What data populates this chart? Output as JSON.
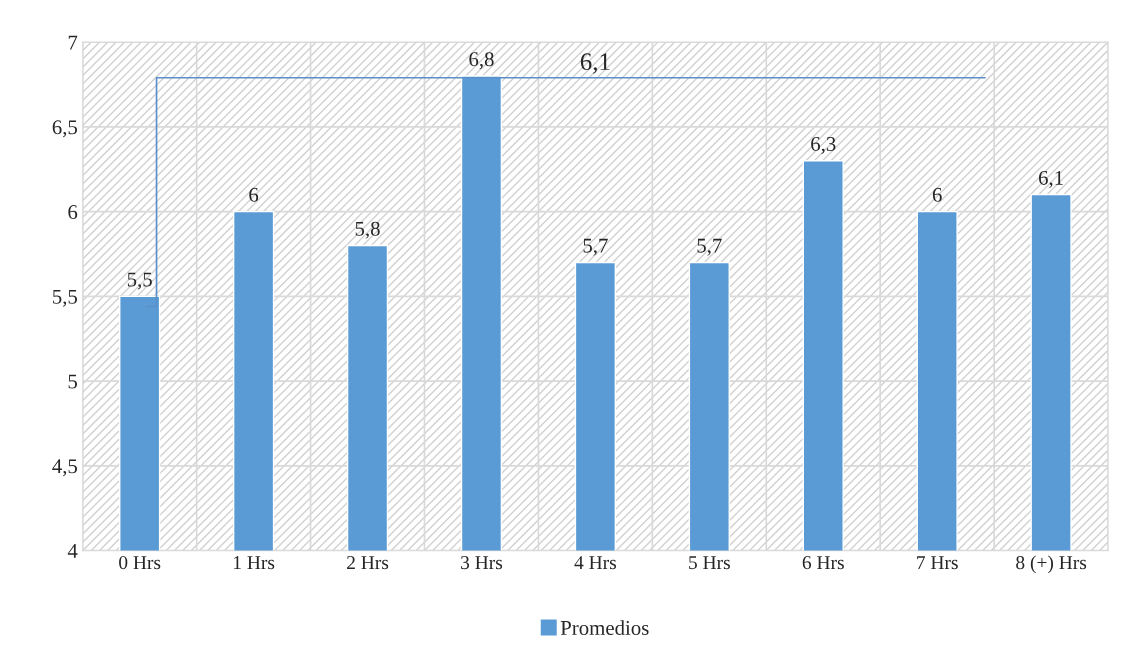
{
  "chart_data": {
    "type": "bar",
    "categories": [
      "0 Hrs",
      "1 Hrs",
      "2 Hrs",
      "3 Hrs",
      "4 Hrs",
      "5 Hrs",
      "6 Hrs",
      "7 Hrs",
      "8 (+) Hrs"
    ],
    "series": [
      {
        "name": "Promedios",
        "color": "#5b9bd5",
        "values": [
          5.5,
          6,
          5.8,
          6.8,
          5.7,
          5.7,
          6.3,
          6,
          6.1
        ],
        "value_labels": [
          "5,5",
          "6",
          "5,8",
          "6,8",
          "5,7",
          "5,7",
          "6,3",
          "6",
          "6,1"
        ]
      }
    ],
    "ylim": [
      4,
      7
    ],
    "yticks": [
      4,
      {
        "value": 4.5,
        "label": "4,5"
      },
      5,
      {
        "value": 5.5,
        "label": "5,5"
      },
      6,
      {
        "value": 6.5,
        "label": "6,5"
      },
      7
    ],
    "grid": true,
    "legend": "bottom",
    "annotations": [
      "6,1"
    ]
  }
}
